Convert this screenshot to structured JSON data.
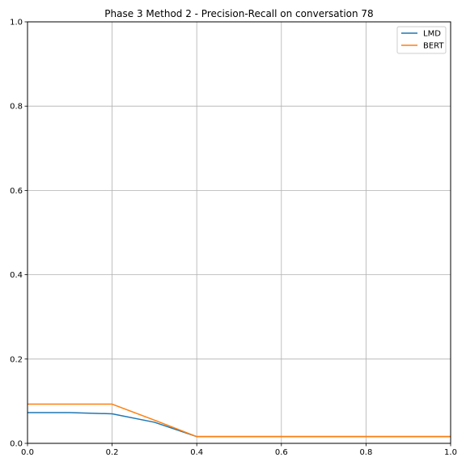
{
  "chart_data": {
    "type": "line",
    "title": "Phase 3 Method 2 - Precision-Recall on conversation 78",
    "xlabel": "",
    "ylabel": "",
    "xlim": [
      0.0,
      1.0
    ],
    "ylim": [
      0.0,
      1.0
    ],
    "xticks": [
      "0.0",
      "0.2",
      "0.4",
      "0.6",
      "0.8",
      "1.0"
    ],
    "yticks": [
      "0.0",
      "0.2",
      "0.4",
      "0.6",
      "0.8",
      "1.0"
    ],
    "grid": true,
    "legend_position": "top-right",
    "series": [
      {
        "name": "LMD",
        "color": "#1f77b4",
        "x": [
          0.0,
          0.1,
          0.2,
          0.3,
          0.4,
          0.5,
          0.6,
          0.7,
          0.8,
          0.9,
          1.0
        ],
        "y": [
          0.073,
          0.073,
          0.07,
          0.05,
          0.016,
          0.016,
          0.016,
          0.016,
          0.016,
          0.016,
          0.016
        ]
      },
      {
        "name": "BERT",
        "color": "#ff7f0e",
        "x": [
          0.0,
          0.1,
          0.2,
          0.3,
          0.4,
          0.5,
          0.6,
          0.7,
          0.8,
          0.9,
          1.0
        ],
        "y": [
          0.093,
          0.093,
          0.093,
          0.055,
          0.016,
          0.016,
          0.016,
          0.016,
          0.016,
          0.016,
          0.016
        ]
      }
    ]
  }
}
